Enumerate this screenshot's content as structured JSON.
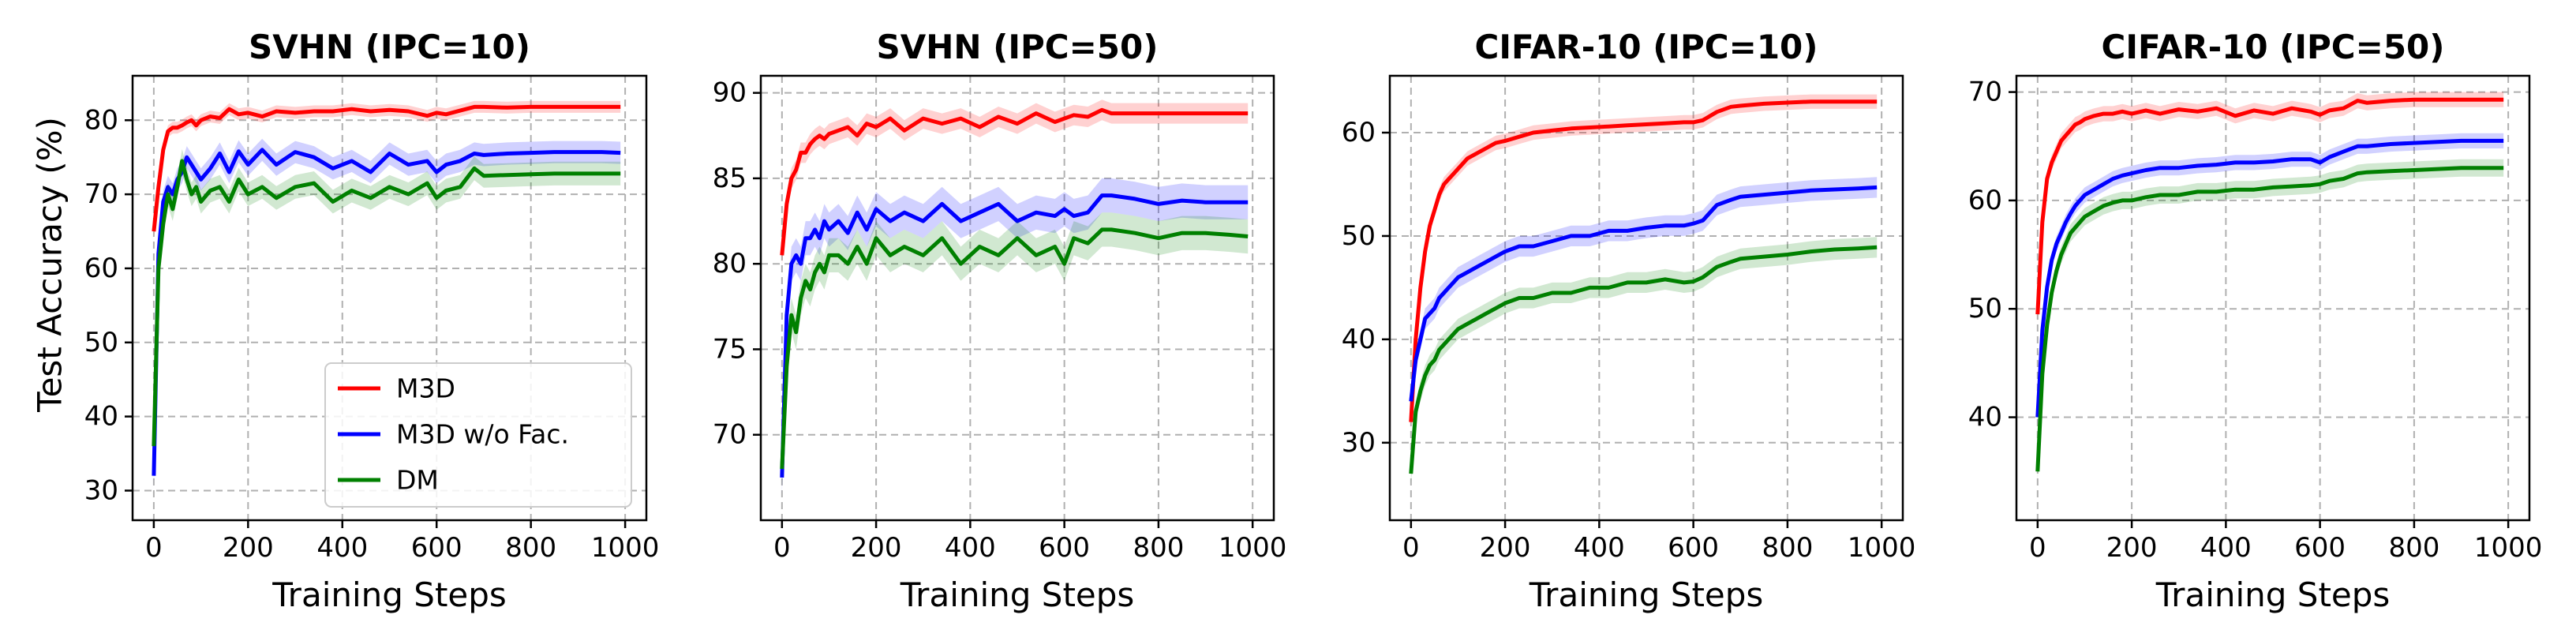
{
  "figure": {
    "ylabel": "Test Accuracy (%)",
    "xlabel": "Training Steps"
  },
  "legend": {
    "placement": "lower-right of first panel",
    "entries": [
      {
        "label": "M3D",
        "color": "#ff0000"
      },
      {
        "label": "M3D w/o Fac.",
        "color": "#0000ff"
      },
      {
        "label": "DM",
        "color": "#008000"
      }
    ]
  },
  "chart_data": [
    {
      "type": "line",
      "title": "SVHN (IPC=10)",
      "xlabel": "Training Steps",
      "ylabel": "Test Accuracy (%)",
      "xlim": [
        -45,
        1045
      ],
      "ylim": [
        26,
        86
      ],
      "xticks": [
        0,
        200,
        400,
        600,
        800,
        1000
      ],
      "yticks": [
        30,
        40,
        50,
        60,
        70,
        80
      ],
      "grid": true,
      "x": [
        0,
        10,
        20,
        30,
        40,
        50,
        60,
        70,
        80,
        90,
        100,
        120,
        140,
        160,
        180,
        200,
        230,
        260,
        300,
        340,
        380,
        420,
        460,
        500,
        540,
        580,
        600,
        620,
        650,
        680,
        700,
        750,
        800,
        850,
        900,
        950,
        990
      ],
      "series": [
        {
          "name": "M3D",
          "color": "#ff0000",
          "values": [
            65,
            71,
            76,
            78.5,
            79,
            79,
            79.3,
            79.7,
            80,
            79.3,
            80,
            80.5,
            80.3,
            81.5,
            80.8,
            81,
            80.5,
            81.2,
            81,
            81.2,
            81.2,
            81.5,
            81.2,
            81.4,
            81.2,
            80.6,
            81,
            80.8,
            81.3,
            81.8,
            81.8,
            81.7,
            81.8,
            81.8,
            81.8,
            81.8,
            81.8
          ],
          "band": 0.8
        },
        {
          "name": "M3D w/o Fac.",
          "color": "#0000ff",
          "values": [
            32,
            62,
            69,
            71,
            70,
            72,
            73,
            75,
            74,
            73,
            72,
            73.5,
            75.5,
            73,
            75.8,
            74,
            76,
            74,
            75.7,
            75,
            73.5,
            74.5,
            73,
            75.5,
            74,
            74.5,
            73,
            74,
            74.5,
            75.5,
            75.3,
            75.5,
            75.6,
            75.7,
            75.7,
            75.7,
            75.6
          ],
          "band": 1.5
        },
        {
          "name": "DM",
          "color": "#008000",
          "values": [
            36,
            60,
            66,
            70,
            68,
            71,
            74.5,
            72,
            70,
            71,
            69,
            70.5,
            71,
            69,
            72,
            70,
            71,
            69.5,
            71,
            71.5,
            69,
            70.5,
            69.5,
            71,
            70,
            71.5,
            69.5,
            70.5,
            71,
            73.5,
            72.5,
            72.6,
            72.7,
            72.8,
            72.8,
            72.8,
            72.8
          ],
          "band": 1.6
        }
      ]
    },
    {
      "type": "line",
      "title": "SVHN (IPC=50)",
      "xlabel": "Training Steps",
      "ylim": [
        65,
        91
      ],
      "xlim": [
        -45,
        1045
      ],
      "xticks": [
        0,
        200,
        400,
        600,
        800,
        1000
      ],
      "yticks": [
        70,
        75,
        80,
        85,
        90
      ],
      "grid": true,
      "x": [
        0,
        10,
        20,
        30,
        40,
        50,
        60,
        70,
        80,
        90,
        100,
        120,
        140,
        160,
        180,
        200,
        230,
        260,
        300,
        340,
        380,
        420,
        460,
        500,
        540,
        580,
        600,
        620,
        650,
        680,
        700,
        750,
        800,
        850,
        900,
        950,
        990
      ],
      "series": [
        {
          "name": "M3D",
          "color": "#ff0000",
          "values": [
            80.5,
            83.5,
            85,
            85.5,
            86.5,
            86.5,
            87,
            87.3,
            87.5,
            87.3,
            87.6,
            87.8,
            88,
            87.5,
            88.2,
            88,
            88.5,
            87.8,
            88.5,
            88.2,
            88.5,
            88,
            88.6,
            88.2,
            88.8,
            88.3,
            88.5,
            88.7,
            88.6,
            89,
            88.8,
            88.8,
            88.8,
            88.8,
            88.8,
            88.8,
            88.8
          ],
          "band": 0.6
        },
        {
          "name": "M3D w/o Fac.",
          "color": "#0000ff",
          "values": [
            67.5,
            77,
            80,
            80.5,
            80,
            81.5,
            81.5,
            82,
            81.5,
            82.5,
            82,
            82.5,
            81.8,
            83,
            82,
            83.2,
            82.5,
            83,
            82.5,
            83.5,
            82.5,
            83,
            83.5,
            82.5,
            83,
            82.8,
            83.2,
            82.8,
            83,
            84,
            84,
            83.8,
            83.5,
            83.7,
            83.6,
            83.6,
            83.6
          ],
          "band": 1.0
        },
        {
          "name": "DM",
          "color": "#008000",
          "values": [
            68,
            74,
            77,
            76,
            78,
            79,
            78.5,
            79.5,
            80,
            79.5,
            80.5,
            80.5,
            80,
            81,
            80,
            81.5,
            80.5,
            81,
            80.5,
            81.5,
            80,
            81,
            80.5,
            81.5,
            80.5,
            81,
            80,
            81.5,
            81.2,
            82,
            82,
            81.8,
            81.5,
            81.8,
            81.8,
            81.7,
            81.6
          ],
          "band": 1.0
        }
      ]
    },
    {
      "type": "line",
      "title": "CIFAR-10 (IPC=10)",
      "xlabel": "Training Steps",
      "xlim": [
        -45,
        1045
      ],
      "ylim": [
        22.5,
        65.5
      ],
      "xticks": [
        0,
        200,
        400,
        600,
        800,
        1000
      ],
      "yticks": [
        30,
        40,
        50,
        60
      ],
      "grid": true,
      "x": [
        0,
        10,
        20,
        30,
        40,
        50,
        60,
        70,
        80,
        90,
        100,
        120,
        140,
        160,
        180,
        200,
        230,
        260,
        300,
        340,
        380,
        420,
        460,
        500,
        540,
        580,
        600,
        620,
        650,
        680,
        700,
        750,
        800,
        850,
        900,
        950,
        990
      ],
      "series": [
        {
          "name": "M3D",
          "color": "#ff0000",
          "values": [
            32,
            40,
            45,
            48.5,
            51,
            52.5,
            54,
            55,
            55.5,
            56,
            56.5,
            57.5,
            58,
            58.5,
            59,
            59.2,
            59.6,
            60,
            60.2,
            60.4,
            60.5,
            60.6,
            60.7,
            60.8,
            60.9,
            61,
            61,
            61.2,
            62,
            62.5,
            62.6,
            62.8,
            62.9,
            63,
            63,
            63,
            63
          ],
          "band": 0.7
        },
        {
          "name": "M3D w/o Fac.",
          "color": "#0000ff",
          "values": [
            34,
            38,
            40,
            42,
            42.5,
            43,
            44,
            44.5,
            45,
            45.5,
            46,
            46.5,
            47,
            47.5,
            48,
            48.5,
            49,
            49,
            49.5,
            50,
            50,
            50.5,
            50.5,
            50.8,
            51,
            51,
            51.2,
            51.5,
            53,
            53.5,
            53.8,
            54,
            54.2,
            54.4,
            54.5,
            54.6,
            54.7
          ],
          "band": 1.0
        },
        {
          "name": "DM",
          "color": "#008000",
          "values": [
            27,
            33,
            35,
            36.5,
            37.5,
            38,
            39,
            39.5,
            40,
            40.5,
            41,
            41.5,
            42,
            42.5,
            43,
            43.5,
            44,
            44,
            44.5,
            44.5,
            45,
            45,
            45.5,
            45.5,
            45.8,
            45.5,
            45.6,
            46,
            47,
            47.5,
            47.8,
            48,
            48.2,
            48.5,
            48.7,
            48.8,
            48.9
          ],
          "band": 1.0
        }
      ]
    },
    {
      "type": "line",
      "title": "CIFAR-10 (IPC=50)",
      "xlabel": "Training Steps",
      "xlim": [
        -45,
        1045
      ],
      "ylim": [
        30.5,
        71.5
      ],
      "xticks": [
        0,
        200,
        400,
        600,
        800,
        1000
      ],
      "yticks": [
        40,
        50,
        60,
        70
      ],
      "grid": true,
      "x": [
        0,
        10,
        20,
        30,
        40,
        50,
        60,
        70,
        80,
        90,
        100,
        120,
        140,
        160,
        180,
        200,
        230,
        260,
        300,
        340,
        380,
        420,
        460,
        500,
        540,
        580,
        600,
        620,
        650,
        680,
        700,
        750,
        800,
        850,
        900,
        950,
        990
      ],
      "series": [
        {
          "name": "M3D",
          "color": "#ff0000",
          "values": [
            49.5,
            58,
            62,
            63.5,
            64.5,
            65.5,
            66,
            66.5,
            67,
            67.2,
            67.5,
            67.8,
            68,
            68,
            68.2,
            68,
            68.3,
            68,
            68.4,
            68.2,
            68.5,
            67.8,
            68.3,
            68,
            68.5,
            68.2,
            67.9,
            68.3,
            68.5,
            69.2,
            69,
            69.2,
            69.3,
            69.3,
            69.3,
            69.3,
            69.3
          ],
          "band": 0.7
        },
        {
          "name": "M3D w/o Fac.",
          "color": "#0000ff",
          "values": [
            40,
            48,
            52,
            54.5,
            56,
            57,
            58,
            58.8,
            59.5,
            60,
            60.5,
            61,
            61.5,
            62,
            62.3,
            62.5,
            62.8,
            63,
            63,
            63.2,
            63.3,
            63.5,
            63.5,
            63.6,
            63.8,
            63.8,
            63.5,
            64,
            64.5,
            65,
            65,
            65.2,
            65.3,
            65.4,
            65.5,
            65.5,
            65.5
          ],
          "band": 0.7
        },
        {
          "name": "DM",
          "color": "#008000",
          "values": [
            35,
            44,
            48.5,
            51.5,
            53.5,
            55,
            56,
            57,
            57.5,
            58,
            58.5,
            59,
            59.5,
            59.8,
            60,
            60,
            60.3,
            60.5,
            60.5,
            60.8,
            60.8,
            61,
            61,
            61.2,
            61.3,
            61.4,
            61.5,
            61.8,
            62,
            62.5,
            62.6,
            62.7,
            62.8,
            62.9,
            63,
            63,
            63
          ],
          "band": 0.8
        }
      ]
    }
  ]
}
